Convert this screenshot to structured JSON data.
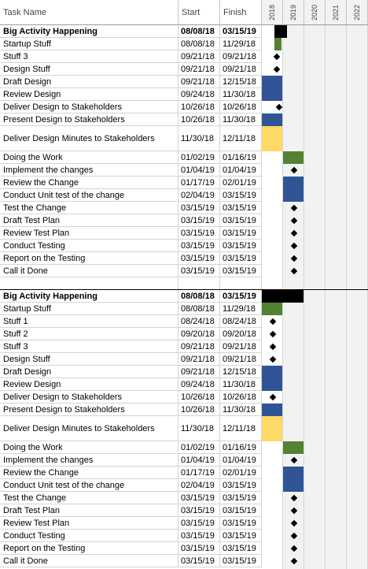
{
  "header": {
    "task_name": "Task Name",
    "start": "Start",
    "finish": "Finish",
    "years": [
      "2018",
      "2019",
      "2020",
      "2021",
      "2022"
    ]
  },
  "colors": {
    "summary": "#000000",
    "green": "#548235",
    "blue": "#2f5597",
    "yellow": "#ffd966",
    "milestone": "#000000"
  },
  "rows": [
    {
      "name": "Big Activity Happening",
      "start": "08/08/18",
      "finish": "03/15/19",
      "bold": true,
      "bar": "summary",
      "s": 0.6,
      "e": 1.2
    },
    {
      "name": "Startup Stuff",
      "start": "08/08/18",
      "finish": "11/29/18",
      "bar": "green",
      "s": 0.6,
      "e": 0.91
    },
    {
      "name": "Stuff 3",
      "start": "09/21/18",
      "finish": "09/21/18",
      "bar": "milestone",
      "s": 0.72
    },
    {
      "name": "Design Stuff",
      "start": "09/21/18",
      "finish": "09/21/18",
      "bar": "milestone",
      "s": 0.72
    },
    {
      "name": "Draft Design",
      "start": "09/21/18",
      "finish": "12/15/18",
      "bar": "blue",
      "s": 0.0,
      "e": 0.95
    },
    {
      "name": "Review Design",
      "start": "09/24/18",
      "finish": "11/30/18",
      "bar": "blue",
      "s": 0.0,
      "e": 0.95
    },
    {
      "name": "Deliver Design to Stakeholders",
      "start": "10/26/18",
      "finish": "10/26/18",
      "bar": "milestone",
      "s": 0.82
    },
    {
      "name": "Present Design to Stakeholders",
      "start": "10/26/18",
      "finish": "11/30/18",
      "bar": "blue",
      "s": 0.0,
      "e": 0.95
    },
    {
      "name": "Deliver Design Minutes to Stakeholders",
      "start": "11/30/18",
      "finish": "12/11/18",
      "bar": "yellow",
      "s": 0.0,
      "e": 0.95,
      "tall": true
    },
    {
      "name": "Doing the Work",
      "start": "01/02/19",
      "finish": "01/16/19",
      "bar": "green",
      "s": 1.0,
      "e": 1.95
    },
    {
      "name": "Implement the changes",
      "start": "01/04/19",
      "finish": "01/04/19",
      "bar": "milestone",
      "s": 1.5
    },
    {
      "name": "Review the Change",
      "start": "01/17/19",
      "finish": "02/01/19",
      "bar": "blue",
      "s": 1.0,
      "e": 1.95
    },
    {
      "name": "Conduct Unit test of the change",
      "start": "02/04/19",
      "finish": "03/15/19",
      "bar": "blue",
      "s": 1.0,
      "e": 1.95
    },
    {
      "name": "Test the Change",
      "start": "03/15/19",
      "finish": "03/15/19",
      "bar": "milestone",
      "s": 1.5
    },
    {
      "name": "Draft Test Plan",
      "start": "03/15/19",
      "finish": "03/15/19",
      "bar": "milestone",
      "s": 1.5
    },
    {
      "name": "Review Test Plan",
      "start": "03/15/19",
      "finish": "03/15/19",
      "bar": "milestone",
      "s": 1.5
    },
    {
      "name": "Conduct Testing",
      "start": "03/15/19",
      "finish": "03/15/19",
      "bar": "milestone",
      "s": 1.5
    },
    {
      "name": "Report on the Testing",
      "start": "03/15/19",
      "finish": "03/15/19",
      "bar": "milestone",
      "s": 1.5
    },
    {
      "name": "Call it Done",
      "start": "03/15/19",
      "finish": "03/15/19",
      "bar": "milestone",
      "s": 1.5
    },
    {
      "name": "",
      "start": "",
      "finish": "",
      "bar": "none"
    },
    {
      "name": "Big Activity Happening",
      "start": "08/08/18",
      "finish": "03/15/19",
      "bold": true,
      "bar": "summary",
      "s": 0.0,
      "e": 1.95
    },
    {
      "name": "Startup Stuff",
      "start": "08/08/18",
      "finish": "11/29/18",
      "bar": "green",
      "s": 0.0,
      "e": 0.95
    },
    {
      "name": "Stuff 1",
      "start": "08/24/18",
      "finish": "08/24/18",
      "bar": "milestone",
      "s": 0.5
    },
    {
      "name": "Stuff 2",
      "start": "09/20/18",
      "finish": "09/20/18",
      "bar": "milestone",
      "s": 0.5
    },
    {
      "name": "Stuff 3",
      "start": "09/21/18",
      "finish": "09/21/18",
      "bar": "milestone",
      "s": 0.5
    },
    {
      "name": "Design Stuff",
      "start": "09/21/18",
      "finish": "09/21/18",
      "bar": "milestone",
      "s": 0.5
    },
    {
      "name": "Draft Design",
      "start": "09/21/18",
      "finish": "12/15/18",
      "bar": "blue",
      "s": 0.0,
      "e": 0.95
    },
    {
      "name": "Review Design",
      "start": "09/24/18",
      "finish": "11/30/18",
      "bar": "blue",
      "s": 0.0,
      "e": 0.95
    },
    {
      "name": "Deliver Design to Stakeholders",
      "start": "10/26/18",
      "finish": "10/26/18",
      "bar": "milestone",
      "s": 0.5
    },
    {
      "name": "Present Design to Stakeholders",
      "start": "10/26/18",
      "finish": "11/30/18",
      "bar": "blue",
      "s": 0.0,
      "e": 0.95
    },
    {
      "name": "Deliver Design Minutes to Stakeholders",
      "start": "11/30/18",
      "finish": "12/11/18",
      "bar": "yellow",
      "s": 0.0,
      "e": 0.95,
      "tall": true
    },
    {
      "name": "Doing the Work",
      "start": "01/02/19",
      "finish": "01/16/19",
      "bar": "green",
      "s": 1.0,
      "e": 1.95
    },
    {
      "name": "Implement the changes",
      "start": "01/04/19",
      "finish": "01/04/19",
      "bar": "milestone",
      "s": 1.5
    },
    {
      "name": "Review the Change",
      "start": "01/17/19",
      "finish": "02/01/19",
      "bar": "blue",
      "s": 1.0,
      "e": 1.95
    },
    {
      "name": "Conduct Unit test of the change",
      "start": "02/04/19",
      "finish": "03/15/19",
      "bar": "blue",
      "s": 1.0,
      "e": 1.95
    },
    {
      "name": "Test the Change",
      "start": "03/15/19",
      "finish": "03/15/19",
      "bar": "milestone",
      "s": 1.5
    },
    {
      "name": "Draft Test Plan",
      "start": "03/15/19",
      "finish": "03/15/19",
      "bar": "milestone",
      "s": 1.5
    },
    {
      "name": "Review Test Plan",
      "start": "03/15/19",
      "finish": "03/15/19",
      "bar": "milestone",
      "s": 1.5
    },
    {
      "name": "Conduct Testing",
      "start": "03/15/19",
      "finish": "03/15/19",
      "bar": "milestone",
      "s": 1.5
    },
    {
      "name": "Report on the Testing",
      "start": "03/15/19",
      "finish": "03/15/19",
      "bar": "milestone",
      "s": 1.5
    },
    {
      "name": "Call it Done",
      "start": "03/15/19",
      "finish": "03/15/19",
      "bar": "milestone",
      "s": 1.5
    }
  ]
}
